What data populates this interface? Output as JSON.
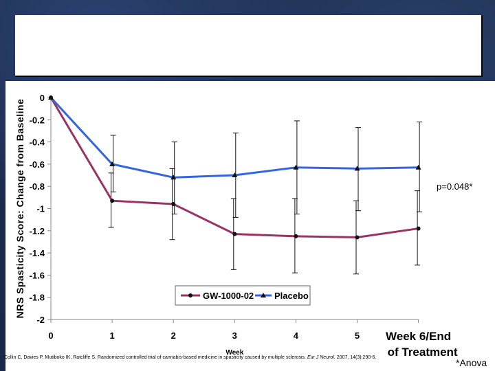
{
  "slide": {
    "title": "",
    "p_value": "p=0.048*",
    "footnote": "*Anova",
    "citation_main": "Collin C, Davies P, Mutiboko IK, Ratcliffe S. Randomized controlled trial of cannabis-based medicine in spasticity caused by multiple sclerosis.",
    "citation_journal": "Eur J Neurol.",
    "citation_tail": "2007. 14(3):290-6."
  },
  "colors": {
    "gw": "#993366",
    "placebo": "#3366dd",
    "background": "#1a2a4a"
  },
  "chart_data": {
    "type": "line",
    "ylabel": "NRS Spasticity Score: Change from Baseline",
    "xlabel": "Week",
    "x": [
      0,
      1,
      2,
      3,
      4,
      5,
      6
    ],
    "x_tick_labels": [
      "0",
      "1",
      "2",
      "3",
      "4",
      "5",
      "Week 6/End of Treatment"
    ],
    "ylim": [
      -2,
      0
    ],
    "y_ticks": [
      0,
      -0.2,
      -0.4,
      -0.6,
      -0.8,
      -1,
      -1.2,
      -1.4,
      -1.6,
      -1.8,
      -2
    ],
    "y_tick_labels": [
      "0",
      "-0.2",
      "-0.4",
      "-0.6",
      "-0.8",
      "-1",
      "-1.2",
      "-1.4",
      "-1.6",
      "-1.8",
      "-2"
    ],
    "grid": false,
    "legend_position": "bottom-center",
    "series": [
      {
        "name": "GW-1000-02",
        "marker": "circle",
        "values": [
          0,
          -0.93,
          -0.96,
          -1.23,
          -1.25,
          -1.26,
          -1.18
        ],
        "error_low": [
          0,
          -1.17,
          -1.28,
          -1.55,
          -1.58,
          -1.59,
          -1.51
        ],
        "error_high": [
          0,
          -0.68,
          -0.64,
          -0.91,
          -0.91,
          -0.93,
          -0.84
        ]
      },
      {
        "name": "Placebo",
        "marker": "triangle",
        "values": [
          0,
          -0.6,
          -0.72,
          -0.7,
          -0.63,
          -0.64,
          -0.63
        ],
        "error_low": [
          0,
          -0.85,
          -1.05,
          -1.08,
          -1.05,
          -1.02,
          -1.03
        ],
        "error_high": [
          0,
          -0.34,
          -0.4,
          -0.32,
          -0.21,
          -0.27,
          -0.22
        ]
      }
    ]
  }
}
